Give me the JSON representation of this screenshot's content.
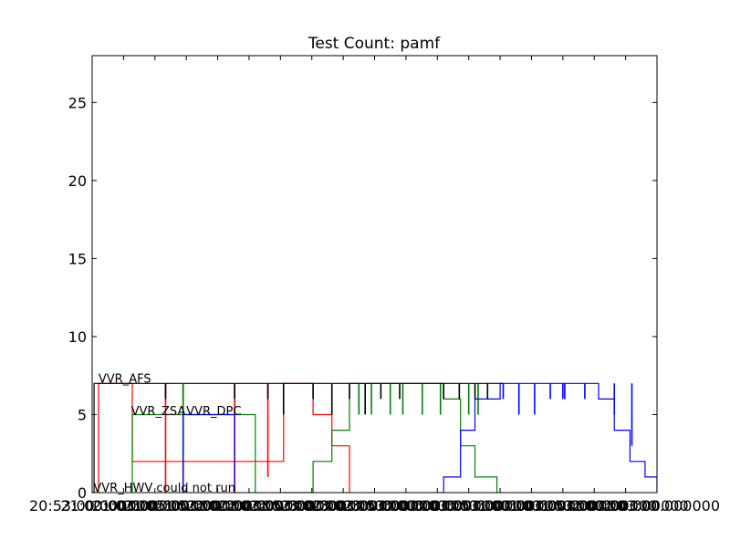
{
  "chart_data": {
    "type": "line",
    "title": "Test Count: pamf",
    "xlabel": "",
    "ylabel": "",
    "ylim": [
      0,
      28
    ],
    "yticks": [
      0,
      5,
      10,
      15,
      20,
      25
    ],
    "xlim": [
      0,
      9
    ],
    "x_ticks": [
      {
        "x": 0,
        "label": "20:53:00.000000"
      },
      {
        "x": 0.5,
        "label": "21:00:00.000000"
      },
      {
        "x": 1,
        "label": "21:03:00.000000"
      },
      {
        "x": 1.5,
        "label": "21:05:00.000000"
      },
      {
        "x": 2,
        "label": "21:53:00.000000"
      },
      {
        "x": 2.5,
        "label": "22:00:00.000000"
      },
      {
        "x": 3,
        "label": "22:03:00.000000"
      },
      {
        "x": 3.5,
        "label": "22:53:00.000000"
      },
      {
        "x": 4,
        "label": "23:00:00.000000"
      },
      {
        "x": 4.5,
        "label": "23:03:00.000000"
      },
      {
        "x": 5,
        "label": "23:53:00.000000"
      },
      {
        "x": 5.5,
        "label": "00:00:00.000000"
      },
      {
        "x": 6,
        "label": "00:03:00.000000"
      },
      {
        "x": 6.5,
        "label": "00:53:00.000000"
      },
      {
        "x": 7,
        "label": "01:00:00.000000"
      },
      {
        "x": 7.5,
        "label": "01:03:00.000000"
      },
      {
        "x": 8,
        "label": "01:53:00.000000"
      },
      {
        "x": 8.5,
        "label": "02:00:00.000000"
      },
      {
        "x": 9,
        "label": "02:03:00.000000"
      }
    ],
    "grid": false,
    "annotations": [
      {
        "text": "VVR_AFS",
        "x": 0.1,
        "y": 7.0
      },
      {
        "text": "VVR_ZSA",
        "x": 0.62,
        "y": 4.9
      },
      {
        "text": "VVR_DPC",
        "x": 1.5,
        "y": 4.9
      },
      {
        "text": "VVR_HWV could not run",
        "x": 0.02,
        "y": 0.0
      }
    ],
    "series": [
      {
        "color": "#ff0000",
        "points": [
          [
            0.03,
            0
          ],
          [
            0.1,
            0
          ],
          [
            0.1,
            7
          ],
          [
            0.64,
            7
          ],
          [
            0.64,
            2
          ],
          [
            3.05,
            2
          ],
          [
            3.05,
            7
          ],
          [
            3.52,
            7
          ],
          [
            3.52,
            5
          ],
          [
            3.82,
            5
          ],
          [
            3.82,
            3
          ],
          [
            4.1,
            3
          ],
          [
            4.1,
            0
          ]
        ],
        "dips": [
          [
            1.17,
            0
          ],
          [
            1.45,
            0
          ],
          [
            2.27,
            0
          ],
          [
            2.8,
            1
          ]
        ]
      },
      {
        "color": "#008000",
        "points": [
          [
            3.05,
            0
          ],
          [
            3.52,
            0
          ],
          [
            3.52,
            2
          ],
          [
            3.82,
            2
          ],
          [
            3.82,
            4
          ],
          [
            4.1,
            4
          ],
          [
            4.1,
            7
          ],
          [
            5.6,
            7
          ],
          [
            5.6,
            6
          ],
          [
            5.87,
            6
          ],
          [
            5.87,
            3
          ],
          [
            6.1,
            3
          ],
          [
            6.1,
            1
          ],
          [
            6.45,
            1
          ],
          [
            6.45,
            0
          ]
        ],
        "dips": [
          [
            4.25,
            5
          ],
          [
            4.45,
            5
          ],
          [
            4.75,
            5
          ],
          [
            4.95,
            5
          ],
          [
            5.26,
            5
          ],
          [
            5.55,
            5
          ],
          [
            6.0,
            5
          ],
          [
            6.15,
            5
          ]
        ]
      },
      {
        "color": "#0000ff",
        "points": [
          [
            5.55,
            0
          ],
          [
            5.6,
            0
          ],
          [
            5.6,
            1
          ],
          [
            5.87,
            1
          ],
          [
            5.87,
            4
          ],
          [
            6.1,
            4
          ],
          [
            6.1,
            6
          ],
          [
            6.5,
            6
          ],
          [
            6.5,
            7
          ],
          [
            8.07,
            7
          ],
          [
            8.07,
            6
          ],
          [
            8.32,
            6
          ],
          [
            8.32,
            4
          ],
          [
            8.57,
            4
          ],
          [
            8.57,
            2
          ],
          [
            8.81,
            2
          ],
          [
            8.81,
            1
          ],
          [
            9.0,
            1
          ],
          [
            9.0,
            0
          ]
        ],
        "dips": [
          [
            6.55,
            6
          ],
          [
            6.8,
            5
          ],
          [
            7.05,
            5
          ],
          [
            7.3,
            6
          ],
          [
            7.5,
            6
          ],
          [
            7.53,
            6
          ],
          [
            7.85,
            6
          ],
          [
            8.32,
            5
          ],
          [
            8.6,
            3
          ]
        ]
      },
      {
        "color": "#000000",
        "points": [
          [
            0,
            0
          ],
          [
            0.03,
            0
          ],
          [
            0.03,
            7
          ],
          [
            3.55,
            7
          ],
          [
            6.55,
            7
          ]
        ],
        "dips": [
          [
            1.17,
            6
          ],
          [
            1.45,
            6
          ],
          [
            2.27,
            6
          ],
          [
            2.8,
            6
          ],
          [
            3.05,
            5
          ],
          [
            3.52,
            6
          ],
          [
            3.82,
            5
          ],
          [
            4.1,
            6
          ],
          [
            4.35,
            5
          ],
          [
            4.6,
            6
          ],
          [
            4.9,
            6
          ],
          [
            5.6,
            6
          ],
          [
            5.85,
            6
          ],
          [
            6.1,
            6
          ],
          [
            6.3,
            6
          ]
        ]
      },
      {
        "color": "#008000",
        "points": [
          [
            0.64,
            0
          ],
          [
            0.64,
            5
          ],
          [
            1.48,
            5
          ],
          [
            2.6,
            5
          ],
          [
            2.6,
            0
          ]
        ],
        "dips": [
          [
            1.45,
            1
          ]
        ]
      },
      {
        "color": "#0000ff",
        "points": [
          [
            1.45,
            0
          ],
          [
            1.45,
            5
          ],
          [
            2.27,
            5
          ],
          [
            2.27,
            0
          ]
        ],
        "dips": []
      }
    ]
  }
}
